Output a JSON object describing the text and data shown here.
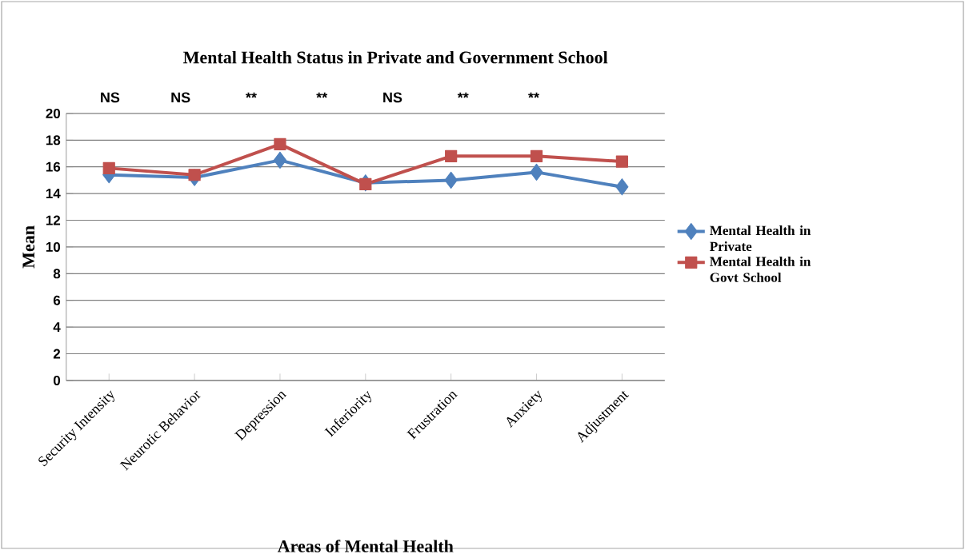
{
  "chart_data": {
    "type": "line",
    "title": "Mental Health Status in Private and Government School",
    "xlabel": "Areas of Mental Health",
    "ylabel": "Mean",
    "categories": [
      "Security Intensity",
      "Neurotic Behavior",
      "Depression",
      "Inferiority",
      "Frustration",
      "Anxiety",
      "Adjustment"
    ],
    "series": [
      {
        "name": "Mental Health in Private",
        "color": "#4f81bd",
        "marker": "diamond",
        "values": [
          15.4,
          15.2,
          16.5,
          14.8,
          15.0,
          15.6,
          14.5
        ]
      },
      {
        "name": "Mental Health in Govt School",
        "color": "#c0504d",
        "marker": "square",
        "values": [
          15.9,
          15.4,
          17.7,
          14.7,
          16.8,
          16.8,
          16.4
        ]
      }
    ],
    "ylim": [
      0,
      20
    ],
    "yticks": [
      0,
      2,
      4,
      6,
      8,
      10,
      12,
      14,
      16,
      18,
      20
    ],
    "grid": "y",
    "legend": "right",
    "annotations": [
      "NS",
      "NS",
      "**",
      "**",
      "NS",
      "**",
      "**"
    ]
  }
}
